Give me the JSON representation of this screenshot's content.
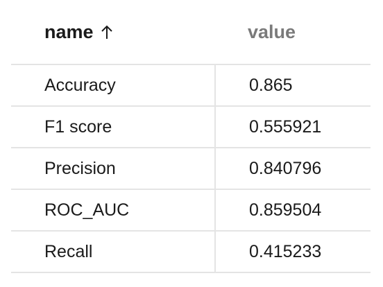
{
  "table": {
    "columns": [
      {
        "label": "name",
        "sort": "ascending",
        "sort_icon": "arrow-up-icon"
      },
      {
        "label": "value"
      }
    ],
    "rows": [
      {
        "name": "Accuracy",
        "value": "0.865"
      },
      {
        "name": "F1 score",
        "value": "0.555921"
      },
      {
        "name": "Precision",
        "value": "0.840796"
      },
      {
        "name": "ROC_AUC",
        "value": "0.859504"
      },
      {
        "name": "Recall",
        "value": "0.415233"
      }
    ]
  },
  "colors": {
    "header_active": "#1a1a1a",
    "header_inactive": "#7a7a7a",
    "grid_line": "#e4e4e4"
  }
}
